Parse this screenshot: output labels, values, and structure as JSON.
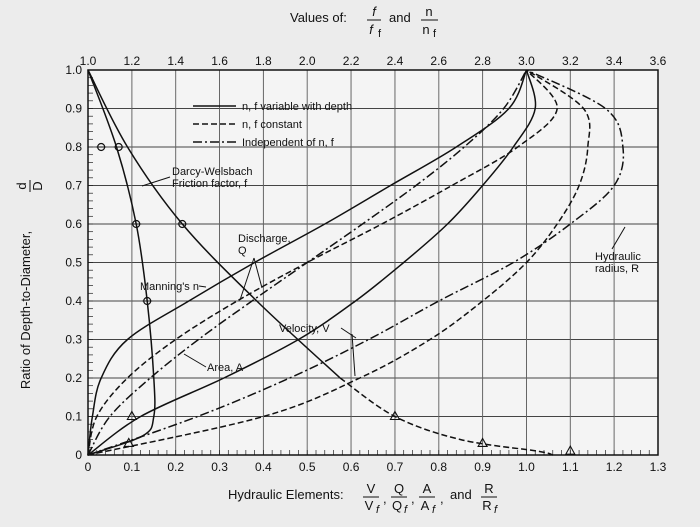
{
  "chart_data": {
    "type": "line",
    "title": {
      "prefix": "Values of:",
      "frac1_num": "f",
      "frac1_den": "f",
      "frac1_den_sub": "f",
      "conj": "and",
      "frac2_num": "n",
      "frac2_den": "n",
      "frac2_den_sub": "f"
    },
    "ylabel": "Ratio of Depth-to-Diameter,",
    "ylabel_frac": {
      "num": "d",
      "den": "D"
    },
    "xlabel": {
      "prefix": "Hydraulic Elements:",
      "fracs": [
        {
          "num": "V",
          "den": "V",
          "sub": "f"
        },
        {
          "num": "Q",
          "den": "Q",
          "sub": "f"
        },
        {
          "num": "A",
          "den": "A",
          "sub": "f"
        },
        {
          "num": "R",
          "den": "R",
          "sub": "f"
        }
      ],
      "conj": "and"
    },
    "x_bottom": {
      "range": [
        0,
        1.3
      ],
      "ticks": [
        "0",
        "0.1",
        "0.2",
        "0.3",
        "0.4",
        "0.5",
        "0.6",
        "0.7",
        "0.8",
        "0.9",
        "1.0",
        "1.1",
        "1.2",
        "1.3"
      ]
    },
    "x_top": {
      "range": [
        1.0,
        3.6
      ],
      "ticks": [
        "1.0",
        "1.2",
        "1.4",
        "1.6",
        "1.8",
        "2.0",
        "2.2",
        "2.4",
        "2.6",
        "2.8",
        "3.0",
        "3.2",
        "3.4",
        "3.6"
      ]
    },
    "y": {
      "range": [
        0,
        1.0
      ],
      "ticks": [
        "0",
        "0.1",
        "0.2",
        "0.3",
        "0.4",
        "0.5",
        "0.6",
        "0.7",
        "0.8",
        "0.9",
        "1.0"
      ]
    },
    "grid": true,
    "legend": {
      "placement": "top-center",
      "entries": [
        {
          "style": "solid",
          "label": "n, f variable with depth"
        },
        {
          "style": "dashed",
          "label": "n, f constant"
        },
        {
          "style": "dashdot",
          "label": "Independent of n, f"
        }
      ]
    },
    "annotations": [
      {
        "id": "darcy",
        "text": [
          "Darcy-Welsbach",
          "Friction factor, f"
        ]
      },
      {
        "id": "discharge",
        "text": [
          "Discharge,",
          "Q"
        ]
      },
      {
        "id": "manning",
        "text": [
          "Manning's n"
        ]
      },
      {
        "id": "velocity",
        "text": [
          "Velocity, V"
        ]
      },
      {
        "id": "area",
        "text": [
          "Area, A"
        ]
      },
      {
        "id": "hydraulic",
        "text": [
          "Hydraulic",
          "radius, R"
        ]
      }
    ],
    "series": [
      {
        "key": "area",
        "axis": "bottom",
        "style": "dashdot",
        "points": [
          [
            0,
            0
          ],
          [
            0.05,
            0.1
          ],
          [
            0.142,
            0.2
          ],
          [
            0.252,
            0.3
          ],
          [
            0.374,
            0.4
          ],
          [
            0.5,
            0.5
          ],
          [
            0.626,
            0.6
          ],
          [
            0.748,
            0.7
          ],
          [
            0.858,
            0.8
          ],
          [
            0.948,
            0.9
          ],
          [
            1.0,
            1.0
          ]
        ]
      },
      {
        "key": "velocity_const",
        "axis": "bottom",
        "style": "dashed",
        "points": [
          [
            0,
            0
          ],
          [
            0.4,
            0.1
          ],
          [
            0.62,
            0.2
          ],
          [
            0.78,
            0.3
          ],
          [
            0.9,
            0.4
          ],
          [
            1.0,
            0.5
          ],
          [
            1.07,
            0.6
          ],
          [
            1.12,
            0.7
          ],
          [
            1.14,
            0.8
          ],
          [
            1.13,
            0.9
          ],
          [
            1.0,
            1.0
          ]
        ]
      },
      {
        "key": "discharge_const",
        "axis": "bottom",
        "style": "dashed",
        "points": [
          [
            0,
            0
          ],
          [
            0.02,
            0.1
          ],
          [
            0.09,
            0.2
          ],
          [
            0.2,
            0.3
          ],
          [
            0.34,
            0.4
          ],
          [
            0.5,
            0.5
          ],
          [
            0.67,
            0.6
          ],
          [
            0.83,
            0.7
          ],
          [
            0.98,
            0.8
          ],
          [
            1.07,
            0.9
          ],
          [
            1.0,
            1.0
          ]
        ]
      },
      {
        "key": "hydraulic_radius",
        "axis": "bottom",
        "style": "dashdot",
        "points": [
          [
            0,
            0
          ],
          [
            0.25,
            0.1
          ],
          [
            0.46,
            0.2
          ],
          [
            0.64,
            0.3
          ],
          [
            0.8,
            0.4
          ],
          [
            0.97,
            0.5
          ],
          [
            1.1,
            0.6
          ],
          [
            1.2,
            0.7
          ],
          [
            1.22,
            0.8
          ],
          [
            1.18,
            0.9
          ],
          [
            1.0,
            1.0
          ]
        ]
      },
      {
        "key": "velocity_var",
        "axis": "bottom",
        "style": "solid",
        "points": [
          [
            0,
            0
          ],
          [
            0.12,
            0.1
          ],
          [
            0.31,
            0.2
          ],
          [
            0.48,
            0.3
          ],
          [
            0.61,
            0.4
          ],
          [
            0.72,
            0.5
          ],
          [
            0.82,
            0.6
          ],
          [
            0.9,
            0.7
          ],
          [
            0.97,
            0.8
          ],
          [
            1.02,
            0.9
          ],
          [
            1.0,
            1.0
          ]
        ]
      },
      {
        "key": "discharge_var",
        "axis": "bottom",
        "style": "solid",
        "points": [
          [
            0,
            0
          ],
          [
            0.01,
            0.1
          ],
          [
            0.03,
            0.2
          ],
          [
            0.09,
            0.3
          ],
          [
            0.23,
            0.4
          ],
          [
            0.38,
            0.5
          ],
          [
            0.54,
            0.6
          ],
          [
            0.69,
            0.7
          ],
          [
            0.84,
            0.8
          ],
          [
            0.96,
            0.9
          ],
          [
            1.0,
            1.0
          ]
        ]
      },
      {
        "key": "manning",
        "axis": "top",
        "style": "solid",
        "points": [
          [
            1.0,
            1.0
          ],
          [
            1.13,
            0.8
          ],
          [
            1.22,
            0.6
          ],
          [
            1.27,
            0.4
          ],
          [
            1.3,
            0.2
          ],
          [
            1.3,
            0.1
          ],
          [
            1.25,
            0.05
          ],
          [
            1.0,
            0.0
          ]
        ]
      },
      {
        "key": "manning_markers",
        "axis": "top",
        "style": "none",
        "points": [
          [
            1.14,
            0.8
          ],
          [
            1.22,
            0.6
          ],
          [
            1.27,
            0.4
          ]
        ]
      },
      {
        "key": "friction",
        "axis": "top",
        "style": "solid",
        "points": [
          [
            1.0,
            1.0
          ],
          [
            1.18,
            0.8
          ],
          [
            1.43,
            0.6
          ],
          [
            1.77,
            0.4
          ],
          [
            2.15,
            0.2
          ]
        ]
      },
      {
        "key": "friction_tail",
        "axis": "top",
        "style": "dashed",
        "points": [
          [
            2.15,
            0.2
          ],
          [
            2.4,
            0.1
          ],
          [
            2.7,
            0.04
          ],
          [
            3.05,
            0.01
          ],
          [
            3.12,
            0.0
          ]
        ]
      },
      {
        "key": "friction_markers",
        "axis": "top",
        "style": "none",
        "points": [
          [
            1.06,
            0.8
          ],
          [
            1.43,
            0.6
          ]
        ]
      }
    ],
    "triangle_markers_bottom": [
      [
        0.093,
        0.03
      ],
      [
        0.1,
        0.1
      ],
      [
        0.7,
        0.1
      ],
      [
        0.9,
        0.03
      ],
      [
        1.1,
        0.01
      ]
    ]
  }
}
